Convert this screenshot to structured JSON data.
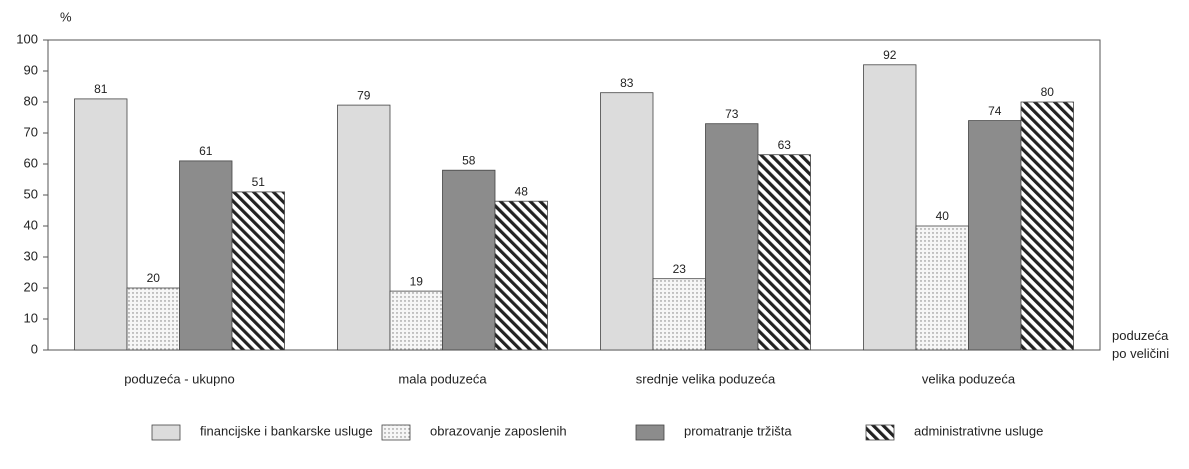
{
  "chart_data": {
    "type": "bar",
    "y_unit": "%",
    "xlabel": "poduzeća po veličini",
    "categories": [
      "poduzeća - ukupno",
      "mala poduzeća",
      "srednje velika poduzeća",
      "velika poduzeća"
    ],
    "series": [
      {
        "name": "financijske i bankarske usluge",
        "color": "#dcdcdc",
        "pattern": "solid",
        "values": [
          81,
          79,
          83,
          92
        ]
      },
      {
        "name": "obrazovanje zaposlenih",
        "color": "#f4f4f4",
        "pattern": "dots",
        "values": [
          20,
          19,
          23,
          40
        ]
      },
      {
        "name": "promatranje tržišta",
        "color": "#8c8c8c",
        "pattern": "solid",
        "values": [
          61,
          58,
          73,
          74
        ]
      },
      {
        "name": "administrativne usluge",
        "color": "#ffffff",
        "pattern": "hatch",
        "values": [
          51,
          48,
          63,
          80
        ]
      }
    ],
    "ylim": [
      0,
      100
    ],
    "yticks": [
      0,
      10,
      20,
      30,
      40,
      50,
      60,
      70,
      80,
      90,
      100
    ],
    "grid": false
  }
}
